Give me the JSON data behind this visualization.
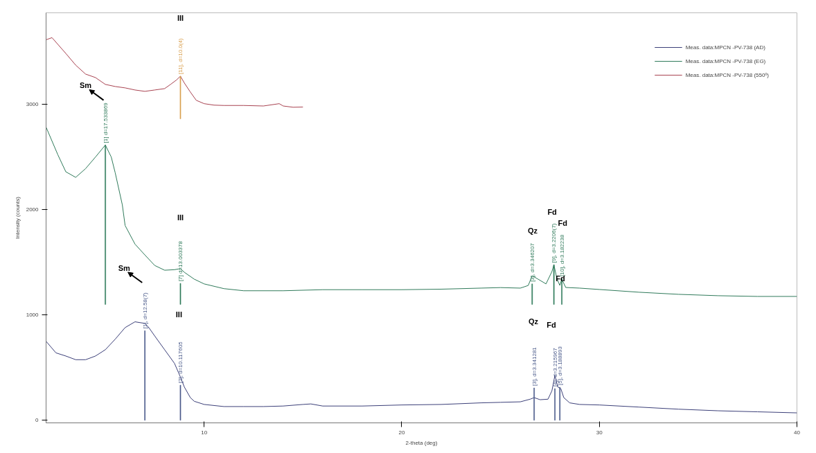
{
  "chart_data": {
    "type": "line",
    "xlabel": "2-theta (deg)",
    "ylabel": "Intensity (counts)",
    "xlim": [
      2,
      40
    ],
    "ylim": [
      -25,
      3870
    ],
    "xticks": [
      10,
      20,
      30,
      40
    ],
    "yticks": [
      0,
      1000,
      2000,
      3000
    ],
    "grid": false,
    "legend": "top right",
    "series": [
      {
        "name": "Meas. data:MPCN -PV-738 (AD)",
        "color": "#3b3f78",
        "x": [
          2,
          2.5,
          3,
          3.5,
          4,
          4.5,
          5,
          5.5,
          6,
          6.5,
          7,
          7.2,
          7.5,
          8,
          8.5,
          8.8,
          9,
          9.3,
          9.5,
          10,
          11,
          12,
          13,
          14,
          15,
          15.4,
          16,
          18,
          20,
          22,
          24,
          25,
          26,
          26.5,
          26.7,
          27,
          27.4,
          27.6,
          27.75,
          27.9,
          28.05,
          28.2,
          28.5,
          29,
          30,
          32,
          34,
          36,
          38,
          40
        ],
        "values": [
          750,
          640,
          610,
          575,
          575,
          610,
          670,
          770,
          880,
          935,
          920,
          880,
          800,
          670,
          540,
          410,
          315,
          215,
          180,
          150,
          130,
          130,
          130,
          135,
          150,
          155,
          135,
          135,
          145,
          150,
          165,
          170,
          175,
          200,
          215,
          195,
          200,
          280,
          425,
          315,
          300,
          215,
          165,
          150,
          145,
          125,
          105,
          90,
          80,
          70
        ]
      },
      {
        "name": "Meas. data:MPCN -PV-738 (EG)",
        "color": "#2f7a5a",
        "x": [
          2,
          2.6,
          3,
          3.5,
          4,
          4.5,
          5,
          5.3,
          5.5,
          5.86,
          6,
          6.5,
          7,
          7.5,
          8,
          8.5,
          8.8,
          9,
          9.5,
          10,
          11,
          12,
          14,
          16,
          18,
          20,
          22,
          24,
          25,
          26,
          26.4,
          26.6,
          26.9,
          27.3,
          27.6,
          27.7,
          27.85,
          28.0,
          28.1,
          28.3,
          29,
          30,
          32,
          34,
          36,
          38,
          40
        ],
        "values": [
          2784,
          2520,
          2360,
          2307,
          2390,
          2500,
          2614,
          2500,
          2350,
          2045,
          1850,
          1673,
          1570,
          1470,
          1425,
          1430,
          1440,
          1405,
          1340,
          1295,
          1250,
          1230,
          1230,
          1240,
          1240,
          1240,
          1245,
          1255,
          1260,
          1255,
          1280,
          1372,
          1340,
          1295,
          1412,
          1477,
          1346,
          1281,
          1340,
          1261,
          1255,
          1242,
          1216,
          1196,
          1183,
          1176,
          1176
        ]
      },
      {
        "name": "Meas. data:MPCN -PV-738 (550º)",
        "color": "#a84250",
        "x": [
          2,
          2.3,
          3,
          3.5,
          4,
          4.5,
          5,
          5.5,
          6,
          6.5,
          7,
          7.5,
          8,
          8.3,
          8.6,
          8.8,
          9,
          9.3,
          9.6,
          10,
          10.5,
          11,
          12,
          13,
          13.8,
          14,
          14.5,
          15
        ],
        "values": [
          3614,
          3634,
          3484,
          3373,
          3288,
          3255,
          3190,
          3170,
          3157,
          3137,
          3124,
          3137,
          3150,
          3190,
          3232,
          3268,
          3203,
          3118,
          3039,
          3007,
          2993,
          2990,
          2990,
          2985,
          3007,
          2985,
          2973,
          2975
        ]
      },
      {
        "type": "bar",
        "color": "#4a5a8a",
        "x": [
          7.0,
          8.8,
          26.7,
          27.75,
          28.0
        ],
        "base": [
          0,
          0,
          0,
          0,
          0
        ],
        "values": [
          850,
          333,
          307,
          300,
          314
        ],
        "value_labels": [
          "[1], d=12.58(7)",
          "[2], d=10.117605",
          "[3], d=3.341281",
          "[4], d=3.215967",
          "[5], d=3.188893"
        ]
      },
      {
        "type": "bar",
        "color": "#2f7a5a",
        "x": [
          5.0,
          8.8,
          26.6,
          27.7,
          28.1
        ],
        "base": [
          1100,
          1100,
          1100,
          1100,
          1100
        ],
        "values": [
          1514,
          200,
          195,
          377,
          246
        ],
        "value_labels": [
          "[1] d=17.533869",
          "[7] d=13.003378",
          "[3], d=3.346207",
          "[9], d=3.2206(7)",
          "[10], d=3.182238"
        ]
      },
      {
        "type": "bar",
        "color": "#d9a050",
        "x": [
          8.8
        ],
        "base": [
          2863
        ],
        "values": [
          405
        ],
        "value_labels": [
          "[11], d=10.0(4)"
        ]
      }
    ],
    "annotations": [
      "Sm",
      "Sm",
      "III",
      "III",
      "III",
      "Qz",
      "Qz",
      "Fd",
      "Fd",
      "Fd",
      "Fd"
    ]
  }
}
